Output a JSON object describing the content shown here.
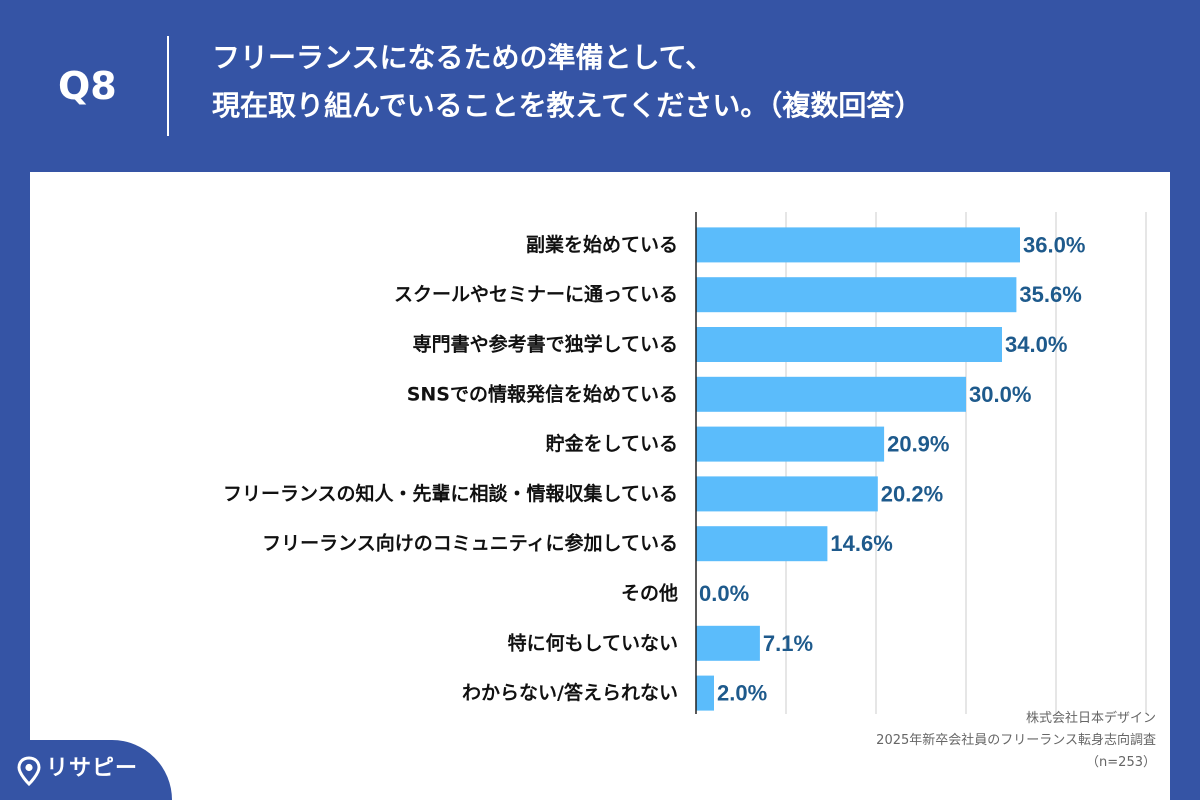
{
  "header": {
    "question_number": "Q8",
    "title_line1": "フリーランスになるための準備として、",
    "title_line2": "現在取り組んでいることを教えてください。（複数回答）"
  },
  "colors": {
    "background": "#3554a5",
    "bar": "#5bbcfb",
    "value_text": "#1e5a8c",
    "label_text": "#111111",
    "gridline": "#cccccc"
  },
  "chart_data": {
    "type": "bar",
    "orientation": "horizontal",
    "title": "フリーランスになるための準備として、現在取り組んでいることを教えてください。（複数回答）",
    "xlabel": "",
    "ylabel": "",
    "xlim": [
      0,
      50
    ],
    "grid": true,
    "value_suffix": "%",
    "categories": [
      "副業を始めている",
      "スクールやセミナーに通っている",
      "専門書や参考書で独学している",
      "SNSでの情報発信を始めている",
      "貯金をしている",
      "フリーランスの知人・先輩に相談・情報収集している",
      "フリーランス向けのコミュニティに参加している",
      "その他",
      "特に何もしていない",
      "わからない/答えられない"
    ],
    "values": [
      36.0,
      35.6,
      34.0,
      30.0,
      20.9,
      20.2,
      14.6,
      0.0,
      7.1,
      2.0
    ]
  },
  "source": {
    "company": "株式会社日本デザイン",
    "survey": "2025年新卒会社員のフリーランス転身志向調査",
    "sample": "（n=253）"
  },
  "logo": {
    "text": "リサピー",
    "icon": "map-pin-icon"
  }
}
